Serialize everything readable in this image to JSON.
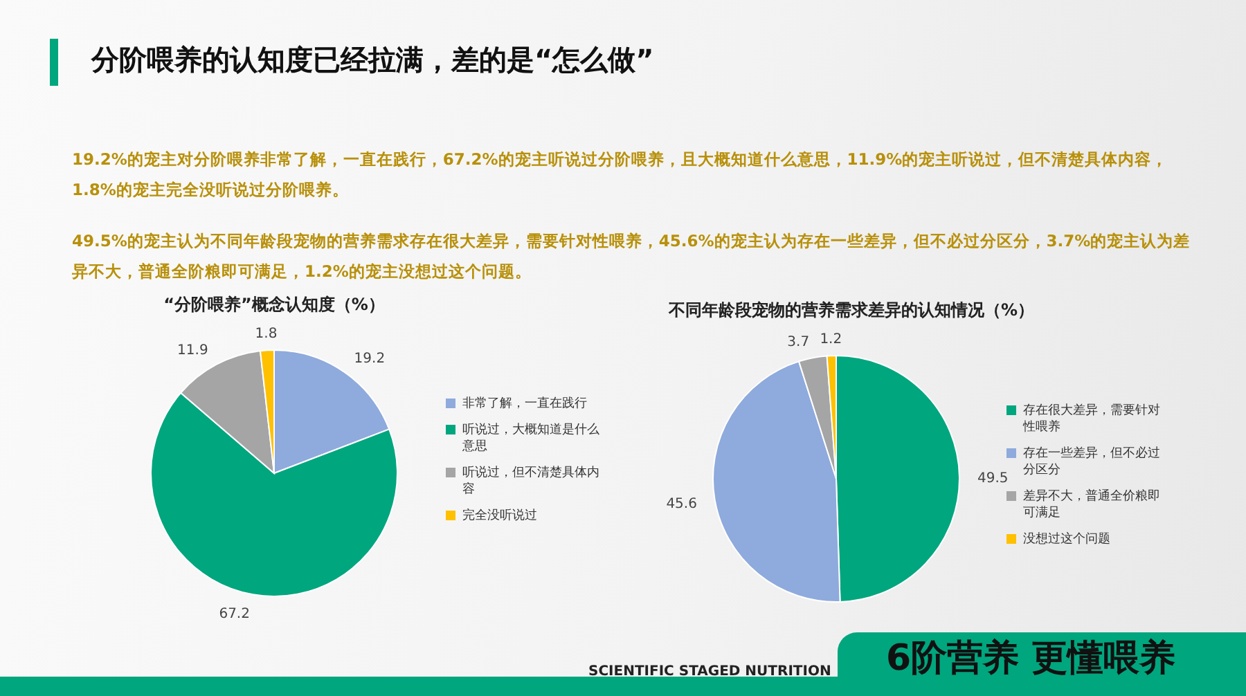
{
  "chart_data": [
    {
      "type": "other",
      "title": "分阶喂养的认知度已经拉满，差的是“怎么做”",
      "annotations": [
        "19.2%的宠主对分阶喂养非常了解，一直在践行，67.2%的宠主听说过分阶喂养，且大概知道什么意思，11.9%的宠主听说过，但不清楚具体内容，1.8%的宠主完全没听说过分阶喂养。",
        "49.5%的宠主认为不同年龄段宠物的营养需求存在很大差异，需要针对性喂养，45.6%的宠主认为存在一些差异，但不必过分区分，3.7%的宠主认为差异不大，普通全阶粮即可满足，1.2%的宠主没想过这个问题。",
        "SCIENTIFIC STAGED NUTRITION",
        "6阶营养 更懂喂养"
      ]
    },
    {
      "type": "pie",
      "title": "“分阶喂养”概念认知度（%）",
      "categories": [
        "非常了解，一直在践行",
        "听说过，大概知道是什么意思",
        "听说过，但不清楚具体内容",
        "完全没听说过"
      ],
      "values": [
        19.2,
        67.2,
        11.9,
        1.8
      ],
      "colors": [
        "#8faadc",
        "#00a67e",
        "#a5a5a5",
        "#ffc000"
      ],
      "data_labels": true,
      "legend": "right"
    },
    {
      "type": "pie",
      "title": "不同年龄段宠物的营养需求差异的认知情况（%）",
      "categories": [
        "存在很大差异，需要针对性喂养",
        "存在一些差异，但不必过分区分",
        "差异不大，普通全价粮即可满足",
        "没想过这个问题"
      ],
      "values": [
        49.5,
        45.6,
        3.7,
        1.2
      ],
      "colors": [
        "#00a67e",
        "#8faadc",
        "#a5a5a5",
        "#ffc000"
      ],
      "data_labels": true,
      "legend": "right"
    }
  ]
}
